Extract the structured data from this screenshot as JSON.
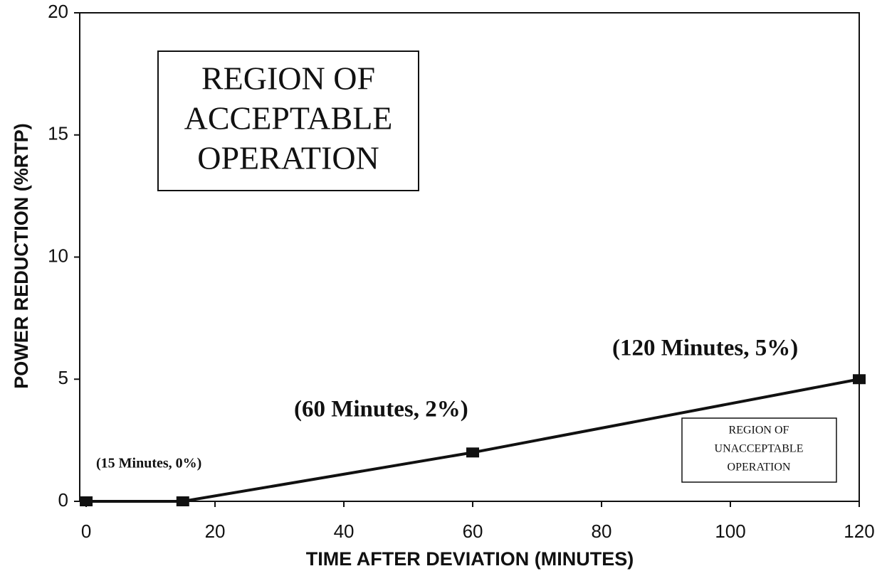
{
  "chart_data": {
    "type": "line",
    "x_label": "TIME AFTER DEVIATION (MINUTES)",
    "y_label": "POWER REDUCTION (%RTP)",
    "x": [
      0,
      15,
      60,
      120
    ],
    "series": [
      {
        "name": null,
        "color": "#111111",
        "values": [
          0,
          0,
          2,
          5
        ]
      }
    ],
    "xlim": [
      -1,
      120
    ],
    "xticks": [
      0,
      20,
      40,
      60,
      80,
      100,
      120
    ],
    "ylim": [
      0,
      20
    ],
    "yticks": [
      0,
      5,
      10,
      15,
      20
    ],
    "grid": false,
    "annotations": [
      {
        "text": [
          "REGION OF",
          "ACCEPTABLE",
          "OPERATION"
        ]
      },
      {
        "text": [
          "REGION OF",
          "UNACCEPTABLE",
          "OPERATION"
        ]
      },
      {
        "text": [
          "(15 Minutes, 0%)"
        ]
      },
      {
        "text": [
          "(60 Minutes, 2%)"
        ]
      },
      {
        "text": [
          "(120 Minutes, 5%)"
        ]
      }
    ]
  }
}
